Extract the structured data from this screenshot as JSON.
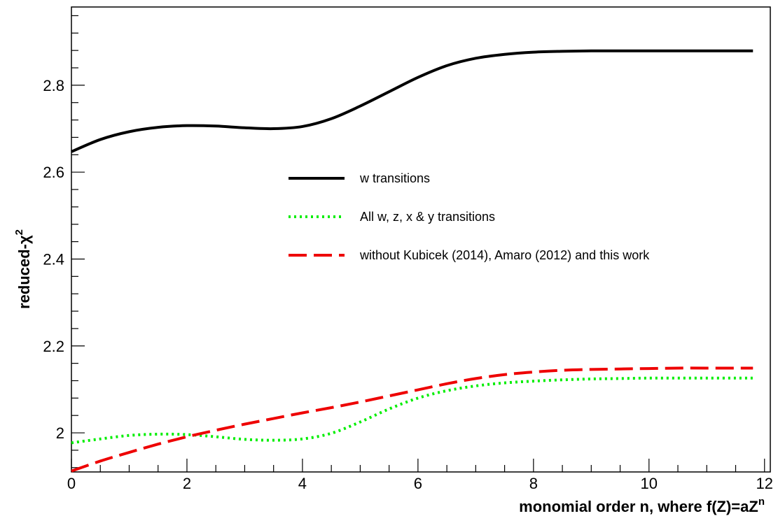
{
  "chart_data": {
    "type": "line",
    "xlabel": "monomial order n, where f(Z)=aZ",
    "xlabel_superscript": "n",
    "ylabel": "reduced-χ",
    "ylabel_superscript": "2",
    "xlim": [
      0,
      12.1
    ],
    "ylim": [
      1.91,
      2.98
    ],
    "x_ticks": [
      0,
      2,
      4,
      6,
      8,
      10,
      12
    ],
    "x_tick_labels": [
      "0",
      "2",
      "4",
      "6",
      "8",
      "10",
      "12"
    ],
    "y_ticks": [
      2.0,
      2.2,
      2.4,
      2.6,
      2.8
    ],
    "y_tick_labels": [
      "2",
      "2.2",
      "2.4",
      "2.6",
      "2.8"
    ],
    "grid": false,
    "legend_placement": "center",
    "series": [
      {
        "name": "w transitions",
        "color": "#000000",
        "style": "solid",
        "x": [
          0,
          0.5,
          1,
          1.5,
          2,
          2.5,
          3,
          3.5,
          4,
          4.5,
          5,
          5.5,
          6,
          6.5,
          7,
          7.5,
          8,
          8.5,
          9,
          9.5,
          10,
          10.5,
          11,
          11.5,
          11.8
        ],
        "y": [
          2.647,
          2.675,
          2.693,
          2.703,
          2.707,
          2.706,
          2.702,
          2.7,
          2.705,
          2.723,
          2.752,
          2.785,
          2.818,
          2.845,
          2.862,
          2.871,
          2.876,
          2.878,
          2.879,
          2.879,
          2.879,
          2.879,
          2.879,
          2.879,
          2.879
        ]
      },
      {
        "name": "All w, z, x & y transitions",
        "color": "#00ee00",
        "style": "dotted",
        "x": [
          0,
          0.5,
          1,
          1.5,
          2,
          2.5,
          3,
          3.5,
          4,
          4.5,
          5,
          5.5,
          6,
          6.5,
          7,
          7.5,
          8,
          8.5,
          9,
          9.5,
          10,
          10.5,
          11,
          11.5,
          11.8
        ],
        "y": [
          1.977,
          1.986,
          1.994,
          1.997,
          1.996,
          1.991,
          1.985,
          1.983,
          1.986,
          1.999,
          2.025,
          2.055,
          2.08,
          2.097,
          2.108,
          2.115,
          2.119,
          2.122,
          2.124,
          2.125,
          2.126,
          2.126,
          2.126,
          2.126,
          2.126
        ]
      },
      {
        "name": "without Kubicek (2014), Amaro (2012) and this work",
        "color": "#ee0000",
        "style": "dashed",
        "x": [
          0,
          0.5,
          1,
          1.5,
          2,
          2.5,
          3,
          3.5,
          4,
          4.5,
          5,
          5.5,
          6,
          6.5,
          7,
          7.5,
          8,
          8.5,
          9,
          9.5,
          10,
          10.5,
          11,
          11.5,
          11.8
        ],
        "y": [
          1.912,
          1.935,
          1.955,
          1.974,
          1.991,
          2.006,
          2.02,
          2.033,
          2.046,
          2.058,
          2.071,
          2.085,
          2.099,
          2.113,
          2.125,
          2.134,
          2.14,
          2.144,
          2.146,
          2.147,
          2.148,
          2.149,
          2.149,
          2.149,
          2.149
        ]
      }
    ]
  }
}
